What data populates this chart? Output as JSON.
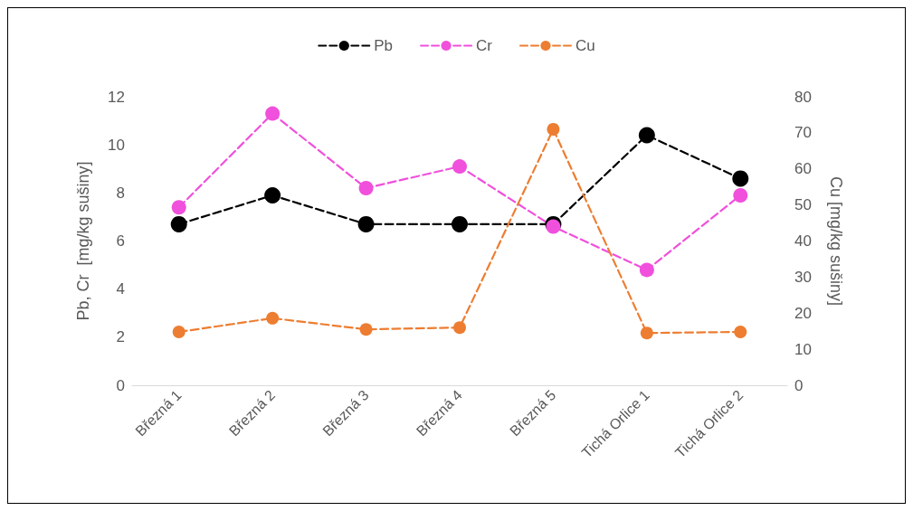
{
  "chart_data": {
    "type": "line",
    "ylabel": "Pb, Cr  [mg/kg sušiny]",
    "y2label": "Cu [mg/kg sušiny]",
    "categories": [
      "Březná 1",
      "Březná 2",
      "Březná 3",
      "Březná 4",
      "Březná 5",
      "Tichá Orlice 1",
      "Tichá Orlice 2"
    ],
    "series": [
      {
        "name": "Pb",
        "color": "#000000",
        "values": [
          6.7,
          7.9,
          6.7,
          6.7,
          6.7,
          10.4,
          8.6
        ]
      },
      {
        "name": "Cr",
        "color": "#f050dc",
        "values": [
          7.4,
          11.3,
          8.2,
          9.1,
          6.6,
          4.8,
          7.9
        ]
      },
      {
        "name": "Cu",
        "color": "#ed7d31",
        "axis": "y2",
        "values": [
          14.8,
          18.6,
          15.5,
          16.0,
          71.0,
          14.5,
          14.8
        ]
      }
    ],
    "ylim": [
      0,
      12
    ],
    "yticks": [
      0,
      2,
      4,
      6,
      8,
      10,
      12
    ],
    "y2lim": [
      0,
      80
    ],
    "y2ticks": [
      0,
      10,
      20,
      30,
      40,
      50,
      60,
      70,
      80
    ],
    "grid": false,
    "legend": "top",
    "marker": "circle",
    "line_style": "dashed"
  }
}
